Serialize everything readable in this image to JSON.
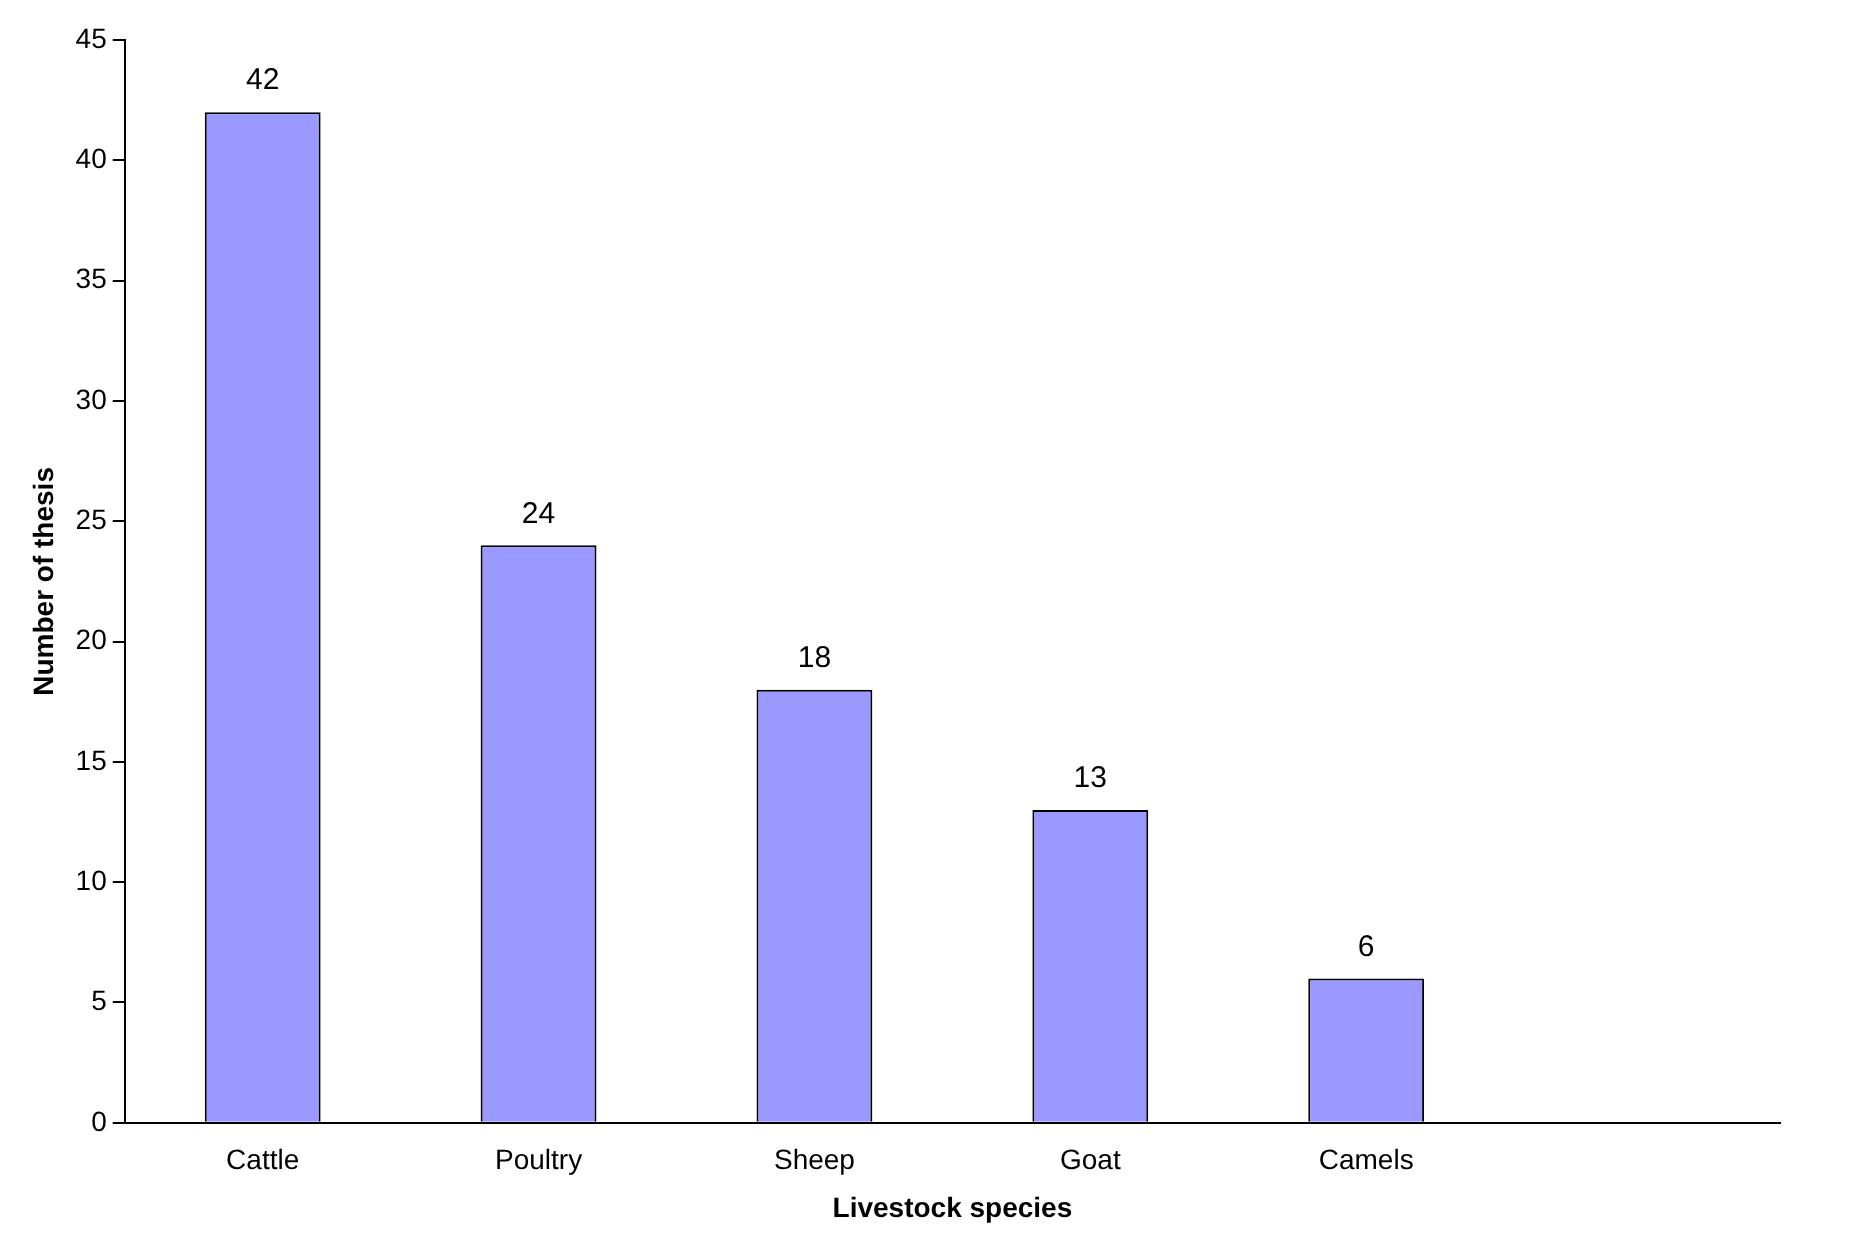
{
  "chart_data": {
    "type": "bar",
    "xlabel": "Livestock species",
    "ylabel": "Number of thesis",
    "categories": [
      "Cattle",
      "Poultry",
      "Sheep",
      "Goat",
      "Camels",
      null
    ],
    "values": [
      42,
      24,
      18,
      13,
      6,
      null
    ],
    "color": "#9999ff",
    "ylim": [
      0,
      45
    ],
    "yticks": [
      0,
      5,
      10,
      15,
      20,
      25,
      30,
      35,
      40,
      45
    ],
    "grid": false,
    "legend": false,
    "data_labels": true
  }
}
